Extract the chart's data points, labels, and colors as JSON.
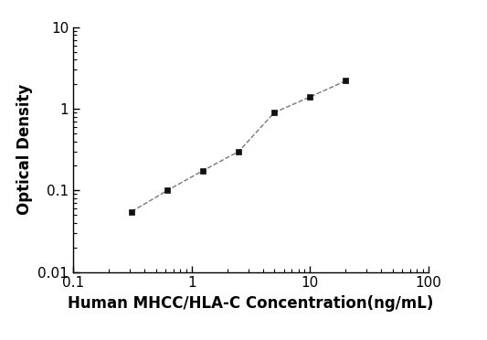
{
  "x": [
    0.3125,
    0.625,
    1.25,
    2.5,
    5.0,
    10.0,
    20.0
  ],
  "y": [
    0.055,
    0.1,
    0.175,
    0.3,
    0.9,
    1.4,
    2.2
  ],
  "xlabel": "Human MHCC/HLA-C Concentration(ng/mL)",
  "ylabel": "Optical Density",
  "xlim": [
    0.1,
    100
  ],
  "ylim": [
    0.01,
    10
  ],
  "line_color": "#777777",
  "marker": "s",
  "marker_color": "#111111",
  "marker_size": 5,
  "linewidth": 1.0,
  "linestyle": "--",
  "background_color": "#ffffff",
  "x_ticks": [
    0.1,
    1,
    10,
    100
  ],
  "x_tick_labels": [
    "0.1",
    "1",
    "10",
    "100"
  ],
  "y_ticks": [
    0.01,
    0.1,
    1,
    10
  ],
  "y_tick_labels": [
    "0.01",
    "0.1",
    "1",
    "10"
  ],
  "xlabel_fontsize": 12,
  "ylabel_fontsize": 12,
  "tick_labelsize": 11
}
